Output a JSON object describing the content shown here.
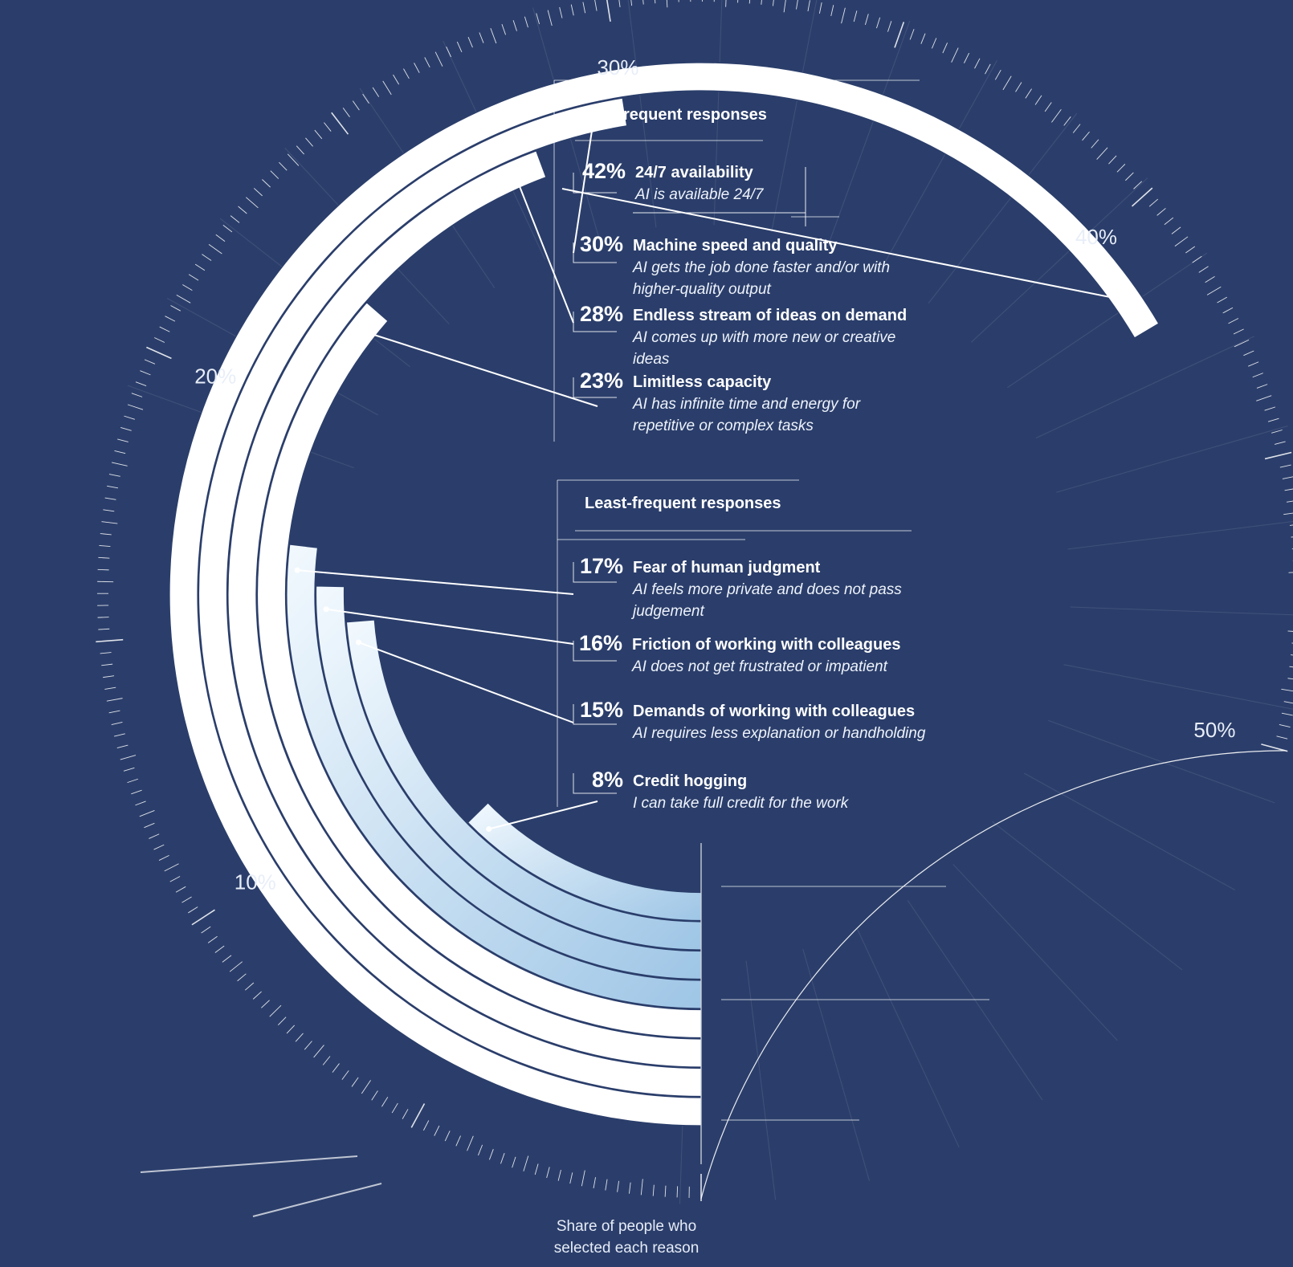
{
  "background_color": "#2b3e6b",
  "chart_data": {
    "type": "radial-bar",
    "axis": {
      "min": 0,
      "max": 50,
      "tick_labels": [
        "10%",
        "20%",
        "30%",
        "40%",
        "50%"
      ],
      "tick_values": [
        10,
        20,
        30,
        40,
        50
      ]
    },
    "axis_title": "Share of people who selected each reason",
    "groups": [
      {
        "title": "Most-frequent responses",
        "color": "#ffffff"
      },
      {
        "title": "Least-frequent responses",
        "color": "#cfe3f4"
      }
    ],
    "series": [
      {
        "value": 42,
        "pct_label": "42%",
        "label": "24/7 availability",
        "description": "AI is available 24/7",
        "group": 0
      },
      {
        "value": 30,
        "pct_label": "30%",
        "label": "Machine speed and quality",
        "description": "AI gets the job done faster and/or with higher-quality output",
        "group": 0
      },
      {
        "value": 28,
        "pct_label": "28%",
        "label": "Endless stream of ideas on demand",
        "description": "AI comes up with more new or creative ideas",
        "group": 0
      },
      {
        "value": 23,
        "pct_label": "23%",
        "label": "Limitless capacity",
        "description": "AI has infinite time and energy for repetitive or complex tasks",
        "group": 0
      },
      {
        "value": 17,
        "pct_label": "17%",
        "label": "Fear of human judgment",
        "description": "AI feels more private and does not pass judgement",
        "group": 1
      },
      {
        "value": 16,
        "pct_label": "16%",
        "label": "Friction of working with colleagues",
        "description": "AI does not get frustrated or impatient",
        "group": 1
      },
      {
        "value": 15,
        "pct_label": "15%",
        "label": "Demands of working with colleagues",
        "description": "AI requires less explanation or handholding",
        "group": 1
      },
      {
        "value": 8,
        "pct_label": "8%",
        "label": "Credit hogging",
        "description": "I can take full credit for the work",
        "group": 1
      }
    ]
  }
}
